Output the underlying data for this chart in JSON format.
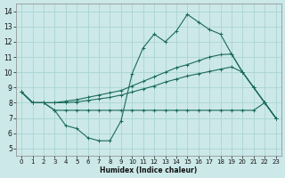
{
  "xlabel": "Humidex (Indice chaleur)",
  "xlim": [
    -0.5,
    23.5
  ],
  "ylim": [
    4.5,
    14.5
  ],
  "xticks": [
    0,
    1,
    2,
    3,
    4,
    5,
    6,
    7,
    8,
    9,
    10,
    11,
    12,
    13,
    14,
    15,
    16,
    17,
    18,
    19,
    20,
    21,
    22,
    23
  ],
  "yticks": [
    5,
    6,
    7,
    8,
    9,
    10,
    11,
    12,
    13,
    14
  ],
  "bg_color": "#cce8e8",
  "grid_color": "#aad4d4",
  "line_color": "#1a6b5a",
  "lines": [
    {
      "x": [
        0,
        1,
        2,
        3,
        4,
        5,
        6,
        7,
        8,
        9,
        10,
        11,
        12,
        13,
        14,
        15,
        16,
        17,
        18,
        19,
        20,
        21,
        22,
        23
      ],
      "y": [
        8.7,
        8.0,
        8.0,
        7.5,
        6.5,
        6.3,
        5.7,
        5.5,
        5.5,
        6.8,
        9.9,
        11.6,
        12.5,
        12.0,
        12.7,
        13.8,
        13.3,
        12.8,
        12.5,
        11.2,
        10.0,
        9.0,
        8.0,
        7.0
      ]
    },
    {
      "x": [
        0,
        1,
        2,
        3,
        4,
        5,
        6,
        7,
        8,
        9,
        10,
        11,
        12,
        13,
        14,
        15,
        16,
        17,
        18,
        19,
        20,
        21,
        22,
        23
      ],
      "y": [
        8.7,
        8.0,
        8.0,
        8.0,
        8.1,
        8.2,
        8.35,
        8.5,
        8.65,
        8.8,
        9.1,
        9.4,
        9.7,
        10.0,
        10.3,
        10.5,
        10.75,
        11.0,
        11.15,
        11.2,
        10.0,
        9.0,
        8.0,
        7.0
      ]
    },
    {
      "x": [
        0,
        1,
        2,
        3,
        4,
        5,
        6,
        7,
        8,
        9,
        10,
        11,
        12,
        13,
        14,
        15,
        16,
        17,
        18,
        19,
        20,
        21,
        22,
        23
      ],
      "y": [
        8.7,
        8.0,
        8.0,
        8.0,
        8.0,
        8.05,
        8.15,
        8.25,
        8.35,
        8.5,
        8.7,
        8.9,
        9.1,
        9.35,
        9.55,
        9.75,
        9.9,
        10.05,
        10.2,
        10.35,
        10.0,
        9.0,
        8.0,
        7.0
      ]
    },
    {
      "x": [
        0,
        1,
        2,
        3,
        4,
        5,
        6,
        7,
        8,
        9,
        10,
        11,
        12,
        13,
        14,
        15,
        16,
        17,
        18,
        19,
        20,
        21,
        22,
        23
      ],
      "y": [
        8.7,
        8.0,
        8.0,
        7.5,
        7.5,
        7.5,
        7.5,
        7.5,
        7.5,
        7.5,
        7.5,
        7.5,
        7.5,
        7.5,
        7.5,
        7.5,
        7.5,
        7.5,
        7.5,
        7.5,
        7.5,
        7.5,
        8.0,
        7.0
      ]
    }
  ]
}
